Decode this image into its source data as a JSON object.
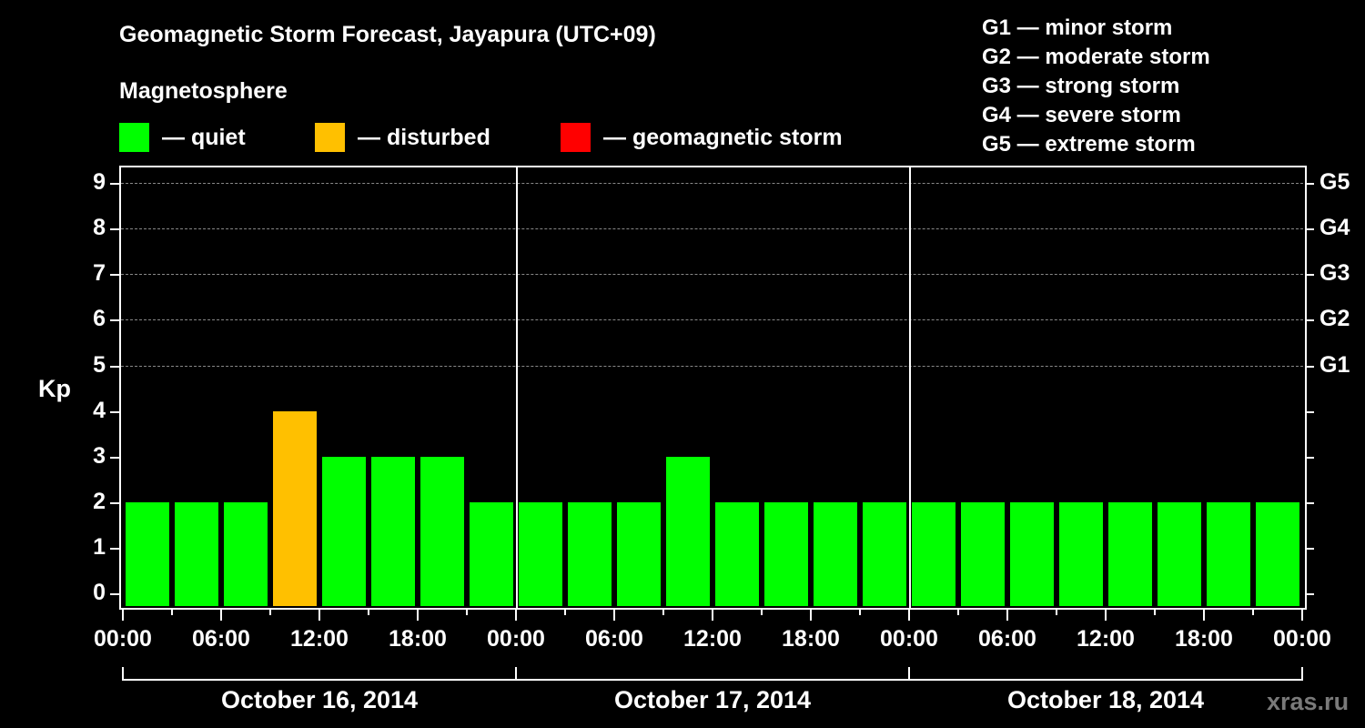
{
  "header": {
    "title": "Geomagnetic Storm Forecast, Jayapura (UTC+09)",
    "subtitle": "Magnetosphere"
  },
  "legend": {
    "items": [
      {
        "label": "— quiet",
        "color": "#00ff00"
      },
      {
        "label": "— disturbed",
        "color": "#ffc000"
      },
      {
        "label": "— geomagnetic storm",
        "color": "#ff0000"
      }
    ]
  },
  "g_scale": {
    "items": [
      "G1 — minor storm",
      "G2 — moderate storm",
      "G3 — strong storm",
      "G4 — severe storm",
      "G5 — extreme storm"
    ]
  },
  "axes": {
    "ylabel": "Kp",
    "yticks": [
      "0",
      "1",
      "2",
      "3",
      "4",
      "5",
      "6",
      "7",
      "8",
      "9"
    ],
    "right_ticks": [
      "G1",
      "G2",
      "G3",
      "G4",
      "G5"
    ],
    "xticks": [
      "00:00",
      "06:00",
      "12:00",
      "18:00",
      "00:00",
      "06:00",
      "12:00",
      "18:00",
      "00:00",
      "06:00",
      "12:00",
      "18:00",
      "00:00"
    ],
    "days": [
      "October 16, 2014",
      "October 17, 2014",
      "October 18, 2014"
    ]
  },
  "watermark": "xras.ru",
  "chart_data": {
    "type": "bar",
    "title": "Geomagnetic Storm Forecast, Jayapura (UTC+09)",
    "subtitle": "Magnetosphere",
    "xlabel": "",
    "ylabel": "Kp",
    "ylim": [
      0,
      9
    ],
    "grid": "horizontal dashed at Kp 5-9",
    "legend_position": "top",
    "categories": [
      "Oct 16 00:00",
      "Oct 16 03:00",
      "Oct 16 06:00",
      "Oct 16 09:00",
      "Oct 16 12:00",
      "Oct 16 15:00",
      "Oct 16 18:00",
      "Oct 16 21:00",
      "Oct 17 00:00",
      "Oct 17 03:00",
      "Oct 17 06:00",
      "Oct 17 09:00",
      "Oct 17 12:00",
      "Oct 17 15:00",
      "Oct 17 18:00",
      "Oct 17 21:00",
      "Oct 18 00:00",
      "Oct 18 03:00",
      "Oct 18 06:00",
      "Oct 18 09:00",
      "Oct 18 12:00",
      "Oct 18 15:00",
      "Oct 18 18:00",
      "Oct 18 21:00"
    ],
    "values": [
      2,
      2,
      2,
      4,
      3,
      3,
      3,
      2,
      2,
      2,
      2,
      3,
      2,
      2,
      2,
      2,
      2,
      2,
      2,
      2,
      2,
      2,
      2,
      2
    ],
    "status": [
      "quiet",
      "quiet",
      "quiet",
      "disturbed",
      "quiet",
      "quiet",
      "quiet",
      "quiet",
      "quiet",
      "quiet",
      "quiet",
      "quiet",
      "quiet",
      "quiet",
      "quiet",
      "quiet",
      "quiet",
      "quiet",
      "quiet",
      "quiet",
      "quiet",
      "quiet",
      "quiet",
      "quiet"
    ],
    "status_colors": {
      "quiet": "#00ff00",
      "disturbed": "#ffc000",
      "storm": "#ff0000"
    },
    "right_axis": {
      "G1": 5,
      "G2": 6,
      "G3": 7,
      "G4": 8,
      "G5": 9
    }
  }
}
